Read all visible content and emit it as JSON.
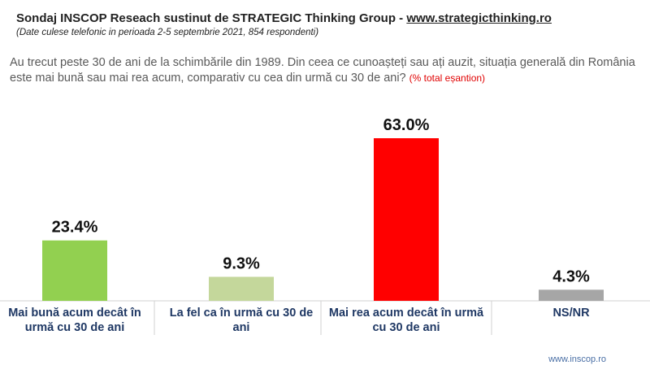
{
  "header": {
    "title": "Sondaj INSCOP Reseach sustinut de STRATEGIC Thinking Group - ",
    "title_link": "www.strategicthinking.ro",
    "subtitle": "(Date culese telefonic in perioada 2-5 septembrie 2021, 854 respondenti)"
  },
  "question": "Au trecut peste 30 de ani de la schimbările din 1989. Din ceea ce cunoașteți sau ați auzit,  situația generală din România este mai bună sau mai rea acum, comparativ cu cea din urmă cu 30 de ani?",
  "question_note": "(% total eșantion)",
  "chart_data": {
    "type": "bar",
    "categories": [
      "Mai bună acum decât în urmă cu 30 de ani",
      "La fel ca în urmă cu 30 de ani",
      "Mai rea acum decât în urmă cu 30 de ani",
      "NS/NR"
    ],
    "values": [
      23.4,
      9.3,
      63.0,
      4.3
    ],
    "value_labels": [
      "23.4%",
      "9.3%",
      "63.0%",
      "4.3%"
    ],
    "colors": [
      "#92d050",
      "#c4d79b",
      "#ff0000",
      "#a6a6a6"
    ]
  },
  "footer": "www.inscop.ro"
}
